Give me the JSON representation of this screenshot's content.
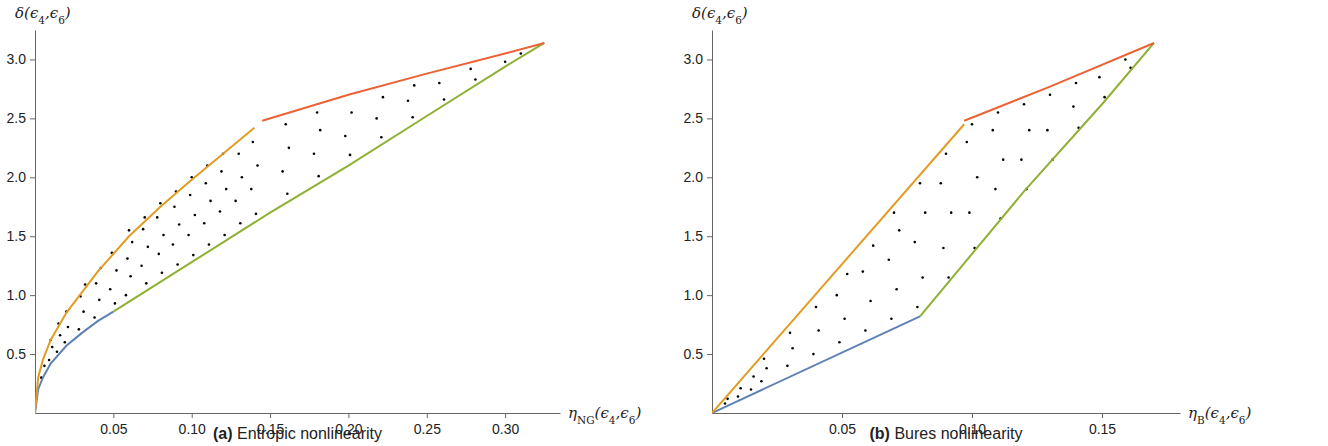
{
  "chart_data": [
    {
      "type": "scatter",
      "title": "(a) Entropic nonlinearity",
      "x_label": "ηNG(ϵ4,ϵ6)",
      "y_label": "δ(ϵ4,ϵ6)",
      "xlim": [
        0,
        0.335
      ],
      "ylim": [
        0,
        3.25
      ],
      "xticks": [
        0.05,
        {
          "value": 0.1,
          "label": "0.10"
        },
        0.15,
        {
          "value": 0.2,
          "label": "0.20"
        },
        0.25,
        {
          "value": 0.3,
          "label": "0.30"
        }
      ],
      "yticks": [
        0.5,
        {
          "value": 1,
          "label": "1.0"
        },
        1.5,
        {
          "value": 2,
          "label": "2.0"
        },
        2.5,
        {
          "value": 3,
          "label": "3.0"
        }
      ],
      "series": [
        {
          "type": "scatter",
          "color": "#000000",
          "marker": "dot",
          "x": [
            0.004,
            0.006,
            0.009,
            0.011,
            0.01,
            0.014,
            0.016,
            0.015,
            0.019,
            0.021,
            0.02,
            0.028,
            0.031,
            0.029,
            0.032,
            0.038,
            0.041,
            0.039,
            0.042,
            0.051,
            0.048,
            0.052,
            0.049,
            0.058,
            0.061,
            0.059,
            0.062,
            0.06,
            0.071,
            0.068,
            0.072,
            0.069,
            0.07,
            0.081,
            0.079,
            0.082,
            0.078,
            0.08,
            0.091,
            0.088,
            0.092,
            0.089,
            0.09,
            0.101,
            0.098,
            0.102,
            0.099,
            0.1,
            0.111,
            0.108,
            0.112,
            0.109,
            0.11,
            0.121,
            0.118,
            0.122,
            0.119,
            0.12,
            0.131,
            0.128,
            0.132,
            0.13,
            0.141,
            0.138,
            0.142,
            0.139,
            0.161,
            0.158,
            0.162,
            0.16,
            0.181,
            0.178,
            0.182,
            0.18,
            0.201,
            0.198,
            0.202,
            0.221,
            0.218,
            0.222,
            0.241,
            0.238,
            0.242,
            0.261,
            0.258,
            0.281,
            0.278,
            0.3,
            0.31
          ],
          "values": [
            0.3,
            0.4,
            0.45,
            0.56,
            0.62,
            0.52,
            0.66,
            0.76,
            0.6,
            0.73,
            0.86,
            0.71,
            0.86,
            0.99,
            1.09,
            0.81,
            0.96,
            1.1,
            1.23,
            0.93,
            1.05,
            1.21,
            1.36,
            1.0,
            1.16,
            1.31,
            1.45,
            1.55,
            1.1,
            1.25,
            1.41,
            1.56,
            1.66,
            1.19,
            1.35,
            1.51,
            1.66,
            1.78,
            1.26,
            1.43,
            1.6,
            1.75,
            1.88,
            1.34,
            1.51,
            1.68,
            1.85,
            2.0,
            1.43,
            1.61,
            1.8,
            1.95,
            2.1,
            1.51,
            1.71,
            1.9,
            2.05,
            2.2,
            1.61,
            1.8,
            2.0,
            2.2,
            1.69,
            1.9,
            2.1,
            2.3,
            1.86,
            2.05,
            2.25,
            2.45,
            2.01,
            2.2,
            2.4,
            2.55,
            2.19,
            2.35,
            2.55,
            2.34,
            2.5,
            2.68,
            2.51,
            2.65,
            2.78,
            2.66,
            2.8,
            2.83,
            2.92,
            2.98,
            3.05
          ]
        },
        {
          "type": "line",
          "color": "#5e81b5",
          "x": [
            0,
            0.002,
            0.005,
            0.01,
            0.02,
            0.03,
            0.04,
            0.05
          ],
          "values": [
            0,
            0.2,
            0.3,
            0.42,
            0.57,
            0.68,
            0.78,
            0.86
          ]
        },
        {
          "type": "line",
          "color": "#8fb032",
          "x": [
            0.05,
            0.1,
            0.15,
            0.2,
            0.25,
            0.3,
            0.325
          ],
          "values": [
            0.86,
            1.28,
            1.7,
            2.1,
            2.52,
            2.94,
            3.14
          ]
        },
        {
          "type": "line",
          "color": "#e19c24",
          "x": [
            0,
            0.002,
            0.005,
            0.01,
            0.02,
            0.04,
            0.06,
            0.08,
            0.1,
            0.12,
            0.14
          ],
          "values": [
            0,
            0.3,
            0.45,
            0.62,
            0.85,
            1.2,
            1.5,
            1.75,
            1.98,
            2.2,
            2.42
          ]
        },
        {
          "type": "line",
          "color": "#eb6235",
          "x": [
            0.145,
            0.2,
            0.25,
            0.3,
            0.325
          ],
          "values": [
            2.48,
            2.7,
            2.88,
            3.05,
            3.14
          ]
        }
      ]
    },
    {
      "type": "scatter",
      "title": "(b) Bures nonlinearity",
      "x_label": "ηB(ϵ4,ϵ6)",
      "y_label": "δ(ϵ4,ϵ6)",
      "xlim": [
        0,
        0.18
      ],
      "ylim": [
        0,
        3.25
      ],
      "xticks": [
        0.05,
        {
          "value": 0.1,
          "label": "0.10"
        },
        0.15
      ],
      "yticks": [
        0.5,
        {
          "value": 1,
          "label": "1.0"
        },
        1.5,
        {
          "value": 2,
          "label": "2.0"
        },
        2.5,
        {
          "value": 3,
          "label": "3.0"
        }
      ],
      "series": [
        {
          "type": "scatter",
          "color": "#000000",
          "marker": "dot",
          "x": [
            0.005,
            0.006,
            0.01,
            0.011,
            0.015,
            0.016,
            0.019,
            0.021,
            0.02,
            0.029,
            0.031,
            0.03,
            0.039,
            0.041,
            0.04,
            0.049,
            0.051,
            0.048,
            0.052,
            0.059,
            0.061,
            0.058,
            0.062,
            0.069,
            0.071,
            0.068,
            0.072,
            0.07,
            0.079,
            0.081,
            0.078,
            0.082,
            0.08,
            0.091,
            0.089,
            0.092,
            0.088,
            0.09,
            0.101,
            0.099,
            0.102,
            0.098,
            0.1,
            0.111,
            0.109,
            0.112,
            0.108,
            0.11,
            0.121,
            0.119,
            0.122,
            0.12,
            0.131,
            0.129,
            0.13,
            0.141,
            0.139,
            0.14,
            0.151,
            0.149,
            0.161,
            0.159
          ],
          "values": [
            0.08,
            0.12,
            0.14,
            0.21,
            0.2,
            0.31,
            0.27,
            0.38,
            0.46,
            0.4,
            0.55,
            0.68,
            0.5,
            0.7,
            0.9,
            0.6,
            0.8,
            1.0,
            1.18,
            0.7,
            0.95,
            1.2,
            1.42,
            0.8,
            1.05,
            1.3,
            1.55,
            1.7,
            0.9,
            1.15,
            1.45,
            1.7,
            1.95,
            1.15,
            1.4,
            1.7,
            1.95,
            2.2,
            1.4,
            1.7,
            2.0,
            2.3,
            2.45,
            1.65,
            1.9,
            2.15,
            2.4,
            2.55,
            1.9,
            2.15,
            2.4,
            2.62,
            2.15,
            2.4,
            2.7,
            2.42,
            2.6,
            2.8,
            2.68,
            2.85,
            2.93,
            3.0
          ]
        },
        {
          "type": "line",
          "color": "#5e81b5",
          "x": [
            0,
            0.08
          ],
          "values": [
            0,
            0.82
          ]
        },
        {
          "type": "line",
          "color": "#8fb032",
          "x": [
            0.08,
            0.12,
            0.15,
            0.17
          ],
          "values": [
            0.82,
            1.88,
            2.62,
            3.14
          ]
        },
        {
          "type": "line",
          "color": "#e19c24",
          "x": [
            0,
            0.097
          ],
          "values": [
            0,
            2.45
          ]
        },
        {
          "type": "line",
          "color": "#eb6235",
          "x": [
            0.097,
            0.13,
            0.17
          ],
          "values": [
            2.48,
            2.77,
            3.14
          ]
        }
      ]
    }
  ]
}
